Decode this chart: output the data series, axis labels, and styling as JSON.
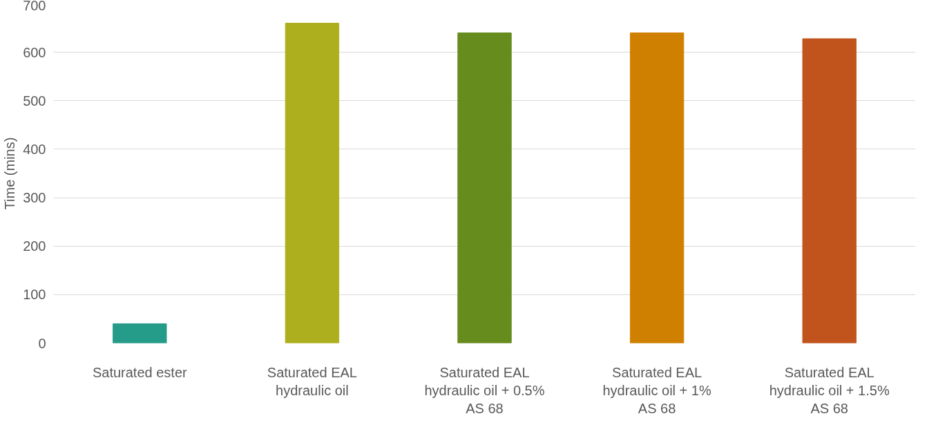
{
  "chart_data": {
    "type": "bar",
    "ylabel": "Time (mins)",
    "categories": [
      "Saturated ester",
      "Saturated EAL hydraulic oil",
      "Saturated EAL hydraulic oil + 0.5% AS 68",
      "Saturated EAL hydraulic oil + 1% AS 68",
      "Saturated EAL hydraulic oil + 1.5% AS 68"
    ],
    "values": [
      40,
      660,
      640,
      640,
      628
    ],
    "colors": [
      "#259b8a",
      "#adaf1e",
      "#668c1e",
      "#d08000",
      "#c0541c"
    ],
    "ylim": [
      0,
      700
    ],
    "yticks": [
      0,
      100,
      200,
      300,
      400,
      500,
      600,
      700
    ],
    "grid": "y"
  }
}
